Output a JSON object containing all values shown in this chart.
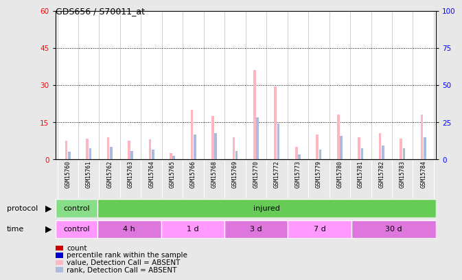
{
  "title": "GDS656 / S70011_at",
  "samples": [
    "GSM15760",
    "GSM15761",
    "GSM15762",
    "GSM15763",
    "GSM15764",
    "GSM15765",
    "GSM15766",
    "GSM15768",
    "GSM15769",
    "GSM15770",
    "GSM15772",
    "GSM15773",
    "GSM15779",
    "GSM15780",
    "GSM15781",
    "GSM15782",
    "GSM15783",
    "GSM15784"
  ],
  "value_absent": [
    7.5,
    8.5,
    9.0,
    7.5,
    8.0,
    2.5,
    20.0,
    17.5,
    9.0,
    36.0,
    29.5,
    5.0,
    10.0,
    18.0,
    9.0,
    10.5,
    8.5,
    18.0
  ],
  "rank_absent": [
    3.0,
    4.5,
    5.0,
    3.5,
    4.0,
    1.5,
    10.0,
    10.5,
    3.5,
    17.0,
    14.5,
    2.0,
    4.0,
    9.5,
    4.5,
    5.5,
    4.5,
    9.0
  ],
  "protocol_groups": [
    {
      "label": "control",
      "start": 0,
      "end": 2,
      "color": "#88DD88"
    },
    {
      "label": "injured",
      "start": 2,
      "end": 18,
      "color": "#66CC55"
    }
  ],
  "time_groups": [
    {
      "label": "control",
      "start": 0,
      "end": 2,
      "color": "#FF99FF"
    },
    {
      "label": "4 h",
      "start": 2,
      "end": 5,
      "color": "#DD77DD"
    },
    {
      "label": "1 d",
      "start": 5,
      "end": 8,
      "color": "#FF99FF"
    },
    {
      "label": "3 d",
      "start": 8,
      "end": 11,
      "color": "#DD77DD"
    },
    {
      "label": "7 d",
      "start": 11,
      "end": 14,
      "color": "#FF99FF"
    },
    {
      "label": "30 d",
      "start": 14,
      "end": 18,
      "color": "#DD77DD"
    }
  ],
  "ylim_left": [
    0,
    60
  ],
  "ylim_right": [
    0,
    100
  ],
  "yticks_left": [
    0,
    15,
    30,
    45,
    60
  ],
  "yticks_right": [
    0,
    25,
    50,
    75,
    100
  ],
  "color_value_absent": "#FFB6C1",
  "color_rank_absent": "#AABBDD",
  "color_value_present": "#CC0000",
  "color_rank_present": "#0000CC",
  "bar_width": 0.12,
  "background_color": "#E8E8E8",
  "plot_bg": "#FFFFFF",
  "legend_items": [
    {
      "label": "count",
      "color": "#CC0000"
    },
    {
      "label": "percentile rank within the sample",
      "color": "#0000CC"
    },
    {
      "label": "value, Detection Call = ABSENT",
      "color": "#FFB6C1"
    },
    {
      "label": "rank, Detection Call = ABSENT",
      "color": "#AABBDD"
    }
  ]
}
